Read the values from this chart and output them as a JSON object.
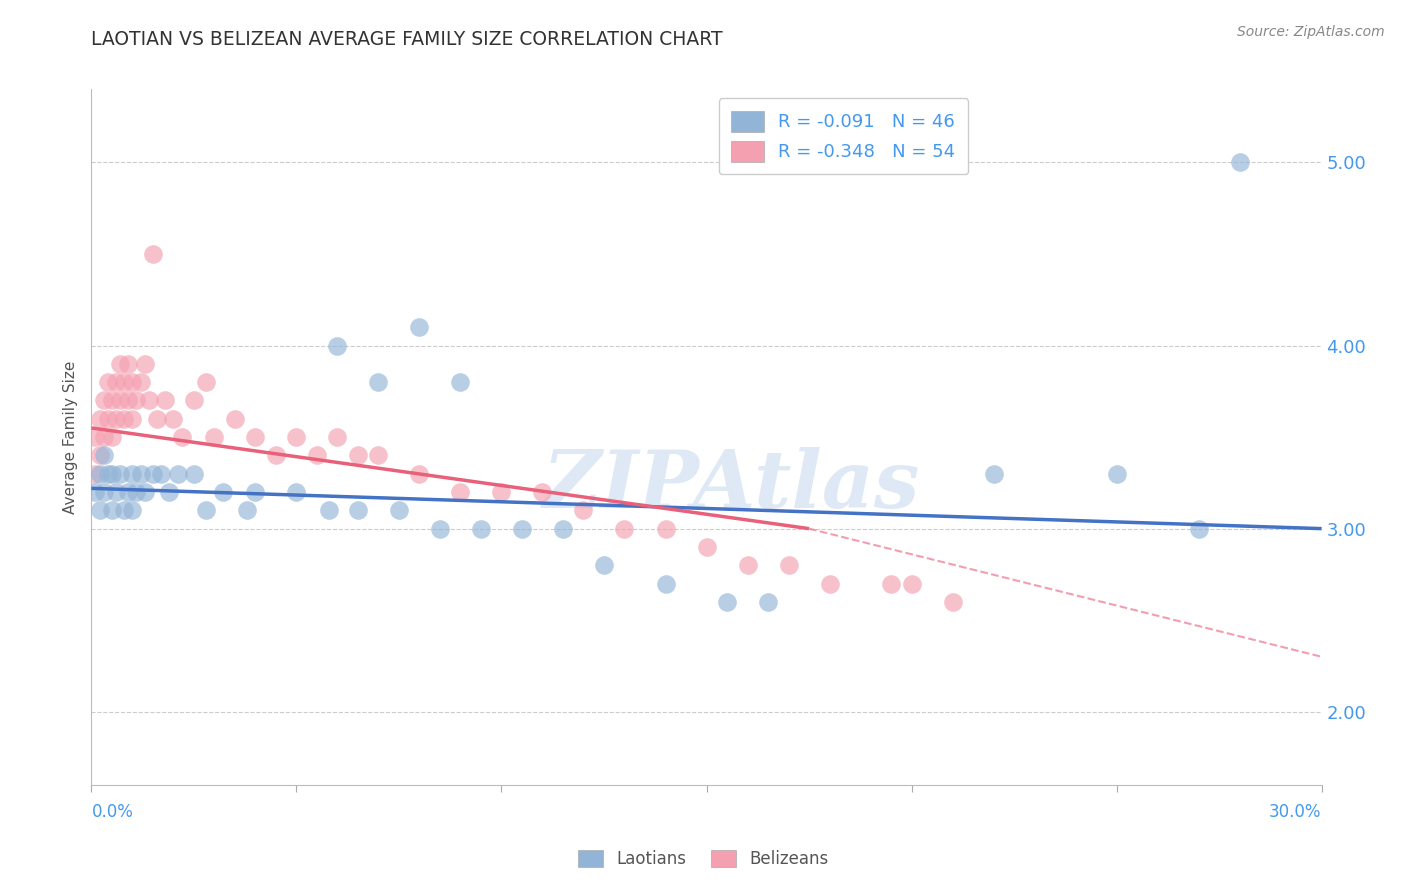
{
  "title": "LAOTIAN VS BELIZEAN AVERAGE FAMILY SIZE CORRELATION CHART",
  "source": "Source: ZipAtlas.com",
  "ylabel": "Average Family Size",
  "y_ticks": [
    2.0,
    3.0,
    4.0,
    5.0
  ],
  "x_range": [
    0.0,
    0.3
  ],
  "y_range": [
    1.6,
    5.4
  ],
  "laotian_R": -0.091,
  "laotian_N": 46,
  "belizean_R": -0.348,
  "belizean_N": 54,
  "blue_color": "#92B4D7",
  "pink_color": "#F4A0B0",
  "blue_line_color": "#4472C4",
  "pink_line_color": "#E8607A",
  "watermark": "ZIPAtlas",
  "laotian_x": [
    0.001,
    0.002,
    0.002,
    0.003,
    0.003,
    0.004,
    0.005,
    0.005,
    0.006,
    0.007,
    0.008,
    0.009,
    0.01,
    0.01,
    0.011,
    0.012,
    0.013,
    0.015,
    0.017,
    0.019,
    0.021,
    0.025,
    0.028,
    0.032,
    0.038,
    0.04,
    0.05,
    0.058,
    0.065,
    0.075,
    0.085,
    0.095,
    0.105,
    0.115,
    0.125,
    0.14,
    0.155,
    0.165,
    0.06,
    0.07,
    0.08,
    0.09,
    0.22,
    0.25,
    0.27,
    0.28
  ],
  "laotian_y": [
    3.2,
    3.3,
    3.1,
    3.4,
    3.2,
    3.3,
    3.1,
    3.3,
    3.2,
    3.3,
    3.1,
    3.2,
    3.3,
    3.1,
    3.2,
    3.3,
    3.2,
    3.3,
    3.3,
    3.2,
    3.3,
    3.3,
    3.1,
    3.2,
    3.1,
    3.2,
    3.2,
    3.1,
    3.1,
    3.1,
    3.0,
    3.0,
    3.0,
    3.0,
    2.8,
    2.7,
    2.6,
    2.6,
    4.0,
    3.8,
    4.1,
    3.8,
    3.3,
    3.3,
    3.0,
    5.0
  ],
  "belizean_x": [
    0.001,
    0.001,
    0.002,
    0.002,
    0.003,
    0.003,
    0.004,
    0.004,
    0.005,
    0.005,
    0.006,
    0.006,
    0.007,
    0.007,
    0.008,
    0.008,
    0.009,
    0.009,
    0.01,
    0.01,
    0.011,
    0.012,
    0.013,
    0.014,
    0.015,
    0.016,
    0.018,
    0.02,
    0.022,
    0.025,
    0.028,
    0.03,
    0.035,
    0.04,
    0.045,
    0.05,
    0.055,
    0.06,
    0.065,
    0.07,
    0.08,
    0.09,
    0.1,
    0.11,
    0.12,
    0.13,
    0.14,
    0.15,
    0.16,
    0.17,
    0.18,
    0.195,
    0.2,
    0.21
  ],
  "belizean_y": [
    3.5,
    3.3,
    3.6,
    3.4,
    3.7,
    3.5,
    3.8,
    3.6,
    3.7,
    3.5,
    3.8,
    3.6,
    3.9,
    3.7,
    3.8,
    3.6,
    3.9,
    3.7,
    3.8,
    3.6,
    3.7,
    3.8,
    3.9,
    3.7,
    4.5,
    3.6,
    3.7,
    3.6,
    3.5,
    3.7,
    3.8,
    3.5,
    3.6,
    3.5,
    3.4,
    3.5,
    3.4,
    3.5,
    3.4,
    3.4,
    3.3,
    3.2,
    3.2,
    3.2,
    3.1,
    3.0,
    3.0,
    2.9,
    2.8,
    2.8,
    2.7,
    2.7,
    2.7,
    2.6
  ],
  "lao_trend_x0": 0.0,
  "lao_trend_y0": 3.22,
  "lao_trend_x1": 0.3,
  "lao_trend_y1": 3.0,
  "bel_trend_x0": 0.0,
  "bel_trend_y0": 3.55,
  "bel_trend_x1_solid": 0.175,
  "bel_trend_y1_solid": 3.0,
  "bel_trend_x1_dash": 0.3,
  "bel_trend_y1_dash": 2.3
}
